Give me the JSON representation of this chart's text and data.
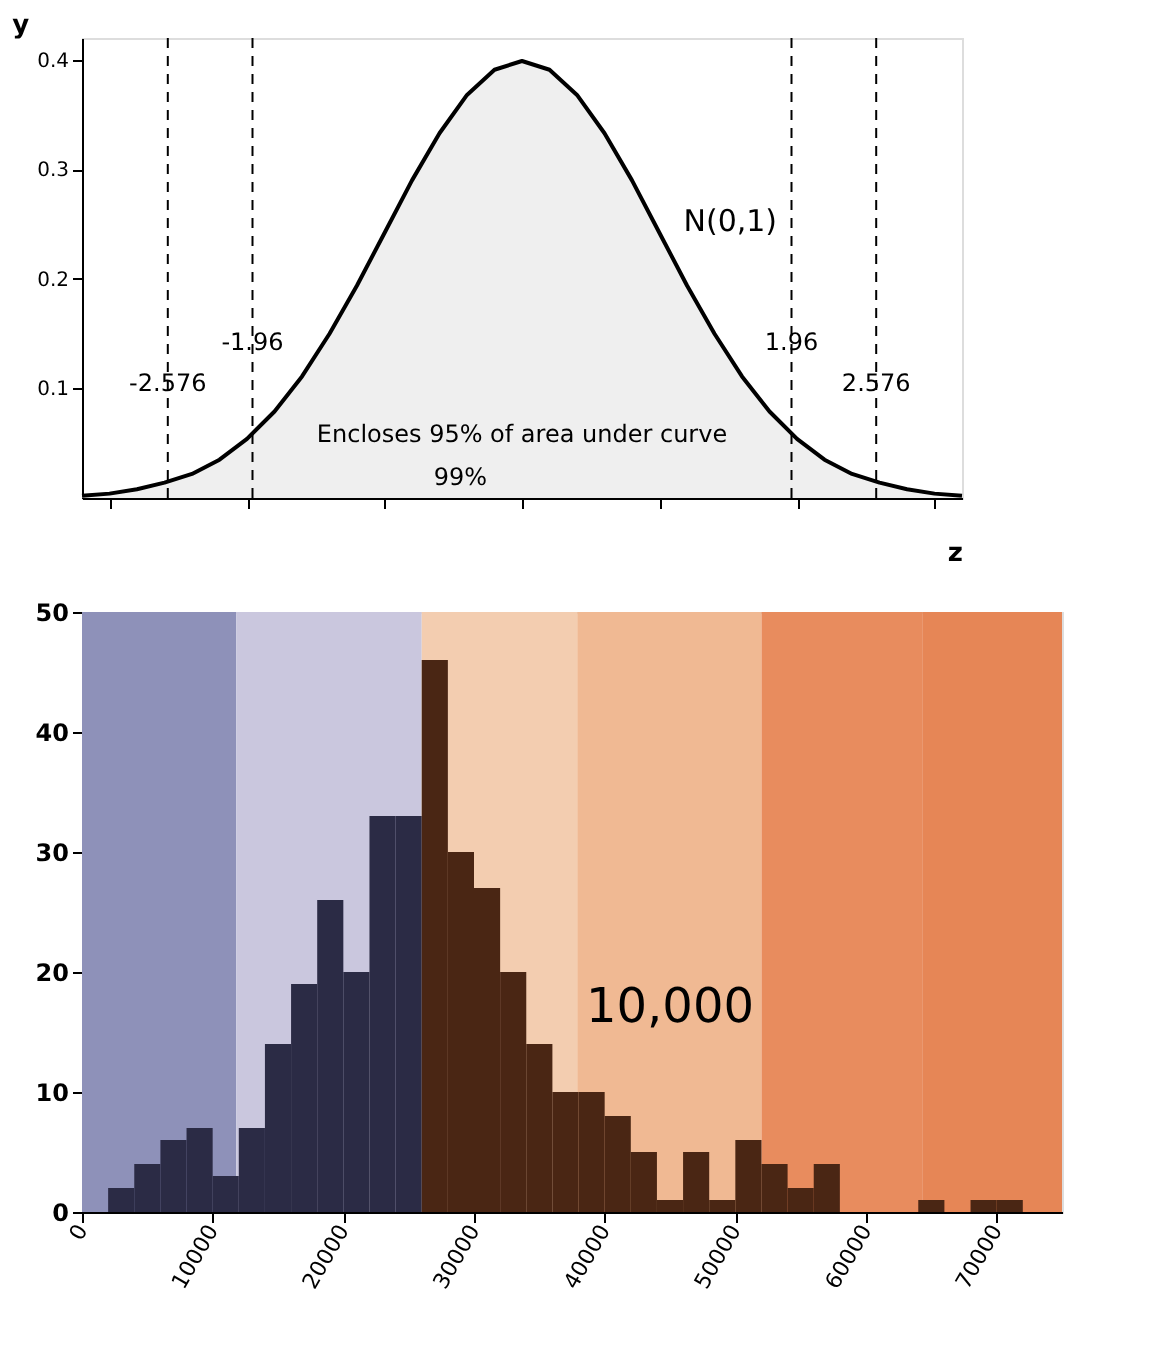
{
  "chart_data": [
    {
      "type": "area",
      "xlabel": "z",
      "ylabel": "y",
      "x": [
        -3.2,
        -3.0,
        -2.8,
        -2.6,
        -2.4,
        -2.2,
        -2.0,
        -1.8,
        -1.6,
        -1.4,
        -1.2,
        -1.0,
        -0.8,
        -0.6,
        -0.4,
        -0.2,
        0,
        0.2,
        0.4,
        0.6,
        0.8,
        1.0,
        1.2,
        1.4,
        1.6,
        1.8,
        2.0,
        2.2,
        2.4,
        2.6,
        2.8,
        3.0,
        3.2
      ],
      "series": [
        {
          "name": "N(0,1)",
          "color": "#efefef",
          "values": [
            0.002,
            0.004,
            0.008,
            0.014,
            0.022,
            0.035,
            0.054,
            0.079,
            0.111,
            0.15,
            0.194,
            0.242,
            0.29,
            0.333,
            0.368,
            0.391,
            0.399,
            0.391,
            0.368,
            0.333,
            0.29,
            0.242,
            0.194,
            0.15,
            0.111,
            0.079,
            0.054,
            0.035,
            0.022,
            0.014,
            0.008,
            0.004,
            0.002
          ]
        }
      ],
      "xlim": [
        -3.2,
        3.2
      ],
      "ylim": [
        0,
        0.42
      ],
      "xticks": [
        {
          "value": -3,
          "label": null
        },
        {
          "value": -2,
          "label": null
        },
        {
          "value": -1,
          "label": null
        },
        {
          "value": 0,
          "label": null
        },
        {
          "value": 1,
          "label": null
        },
        {
          "value": 2,
          "label": null
        },
        {
          "value": 3,
          "label": null
        }
      ],
      "yticks": [
        0.1,
        0.2,
        0.3,
        0.4
      ],
      "ref_lines": [
        {
          "axis": "x",
          "value": -2.576,
          "label": "-2.576",
          "line_style": "dashed"
        },
        {
          "axis": "x",
          "value": -1.96,
          "label": "-1.96",
          "line_style": "dashed"
        },
        {
          "axis": "x",
          "value": 1.96,
          "label": "1.96",
          "line_style": "dashed"
        },
        {
          "axis": "x",
          "value": 2.576,
          "label": "2.576",
          "line_style": "dashed"
        }
      ],
      "annotations": [
        "Encloses 95% of area under curve",
        "99%"
      ],
      "grid": false
    },
    {
      "type": "histogram",
      "bins": [
        2000,
        4000,
        6000,
        8000,
        10000,
        12000,
        14000,
        16000,
        18000,
        20000,
        22000,
        24000,
        26000,
        28000,
        30000,
        32000,
        34000,
        36000,
        38000,
        40000,
        42000,
        44000,
        46000,
        48000,
        50000,
        52000,
        54000,
        56000,
        58000,
        60000,
        62000,
        64000,
        66000,
        68000,
        70000,
        72000
      ],
      "values": [
        2,
        4,
        6,
        7,
        3,
        7,
        14,
        19,
        26,
        20,
        33,
        33,
        46,
        30,
        27,
        20,
        14,
        10,
        10,
        8,
        5,
        1,
        5,
        1,
        6,
        4,
        2,
        4,
        0,
        0,
        0,
        1,
        0,
        1,
        1
      ],
      "colors": [
        "#2b2b45",
        "#2b2b45",
        "#2b2b45",
        "#2b2b45",
        "#2b2b45",
        "#2b2b45",
        "#2b2b45",
        "#2b2b45",
        "#2b2b45",
        "#2b2b45",
        "#2b2b45",
        "#2b2b45",
        "#4a2614",
        "#4a2614",
        "#4a2614",
        "#4a2614",
        "#4a2614",
        "#4a2614",
        "#4a2614",
        "#4a2614",
        "#4a2614",
        "#4a2614",
        "#4a2614",
        "#4a2614",
        "#4a2614",
        "#4a2614",
        "#4a2614",
        "#4a2614",
        "#4a2614",
        "#4a2614",
        "#4a2614",
        "#4a2614",
        "#4a2614",
        "#4a2614",
        "#4a2614"
      ],
      "xlim": [
        0,
        75000
      ],
      "ylim": [
        0,
        50
      ],
      "xticks": [
        0,
        10000,
        20000,
        30000,
        40000,
        50000,
        60000,
        70000
      ],
      "yticks": [
        0,
        10,
        20,
        30,
        40,
        50
      ],
      "bands": [
        {
          "axis": "x",
          "from": 0,
          "to": 11800,
          "color": "#8e91b9"
        },
        {
          "axis": "x",
          "from": 11800,
          "to": 26000,
          "color": "#cac7de"
        },
        {
          "axis": "x",
          "from": 26000,
          "to": 37900,
          "color": "#f3cdb0"
        },
        {
          "axis": "x",
          "from": 37900,
          "to": 52000,
          "color": "#f0b993"
        },
        {
          "axis": "x",
          "from": 52000,
          "to": 64300,
          "color": "#e88c5e"
        },
        {
          "axis": "x",
          "from": 64300,
          "to": 75000,
          "color": "#e68656"
        }
      ],
      "annotations": [
        "10,000"
      ],
      "grid": false
    }
  ]
}
